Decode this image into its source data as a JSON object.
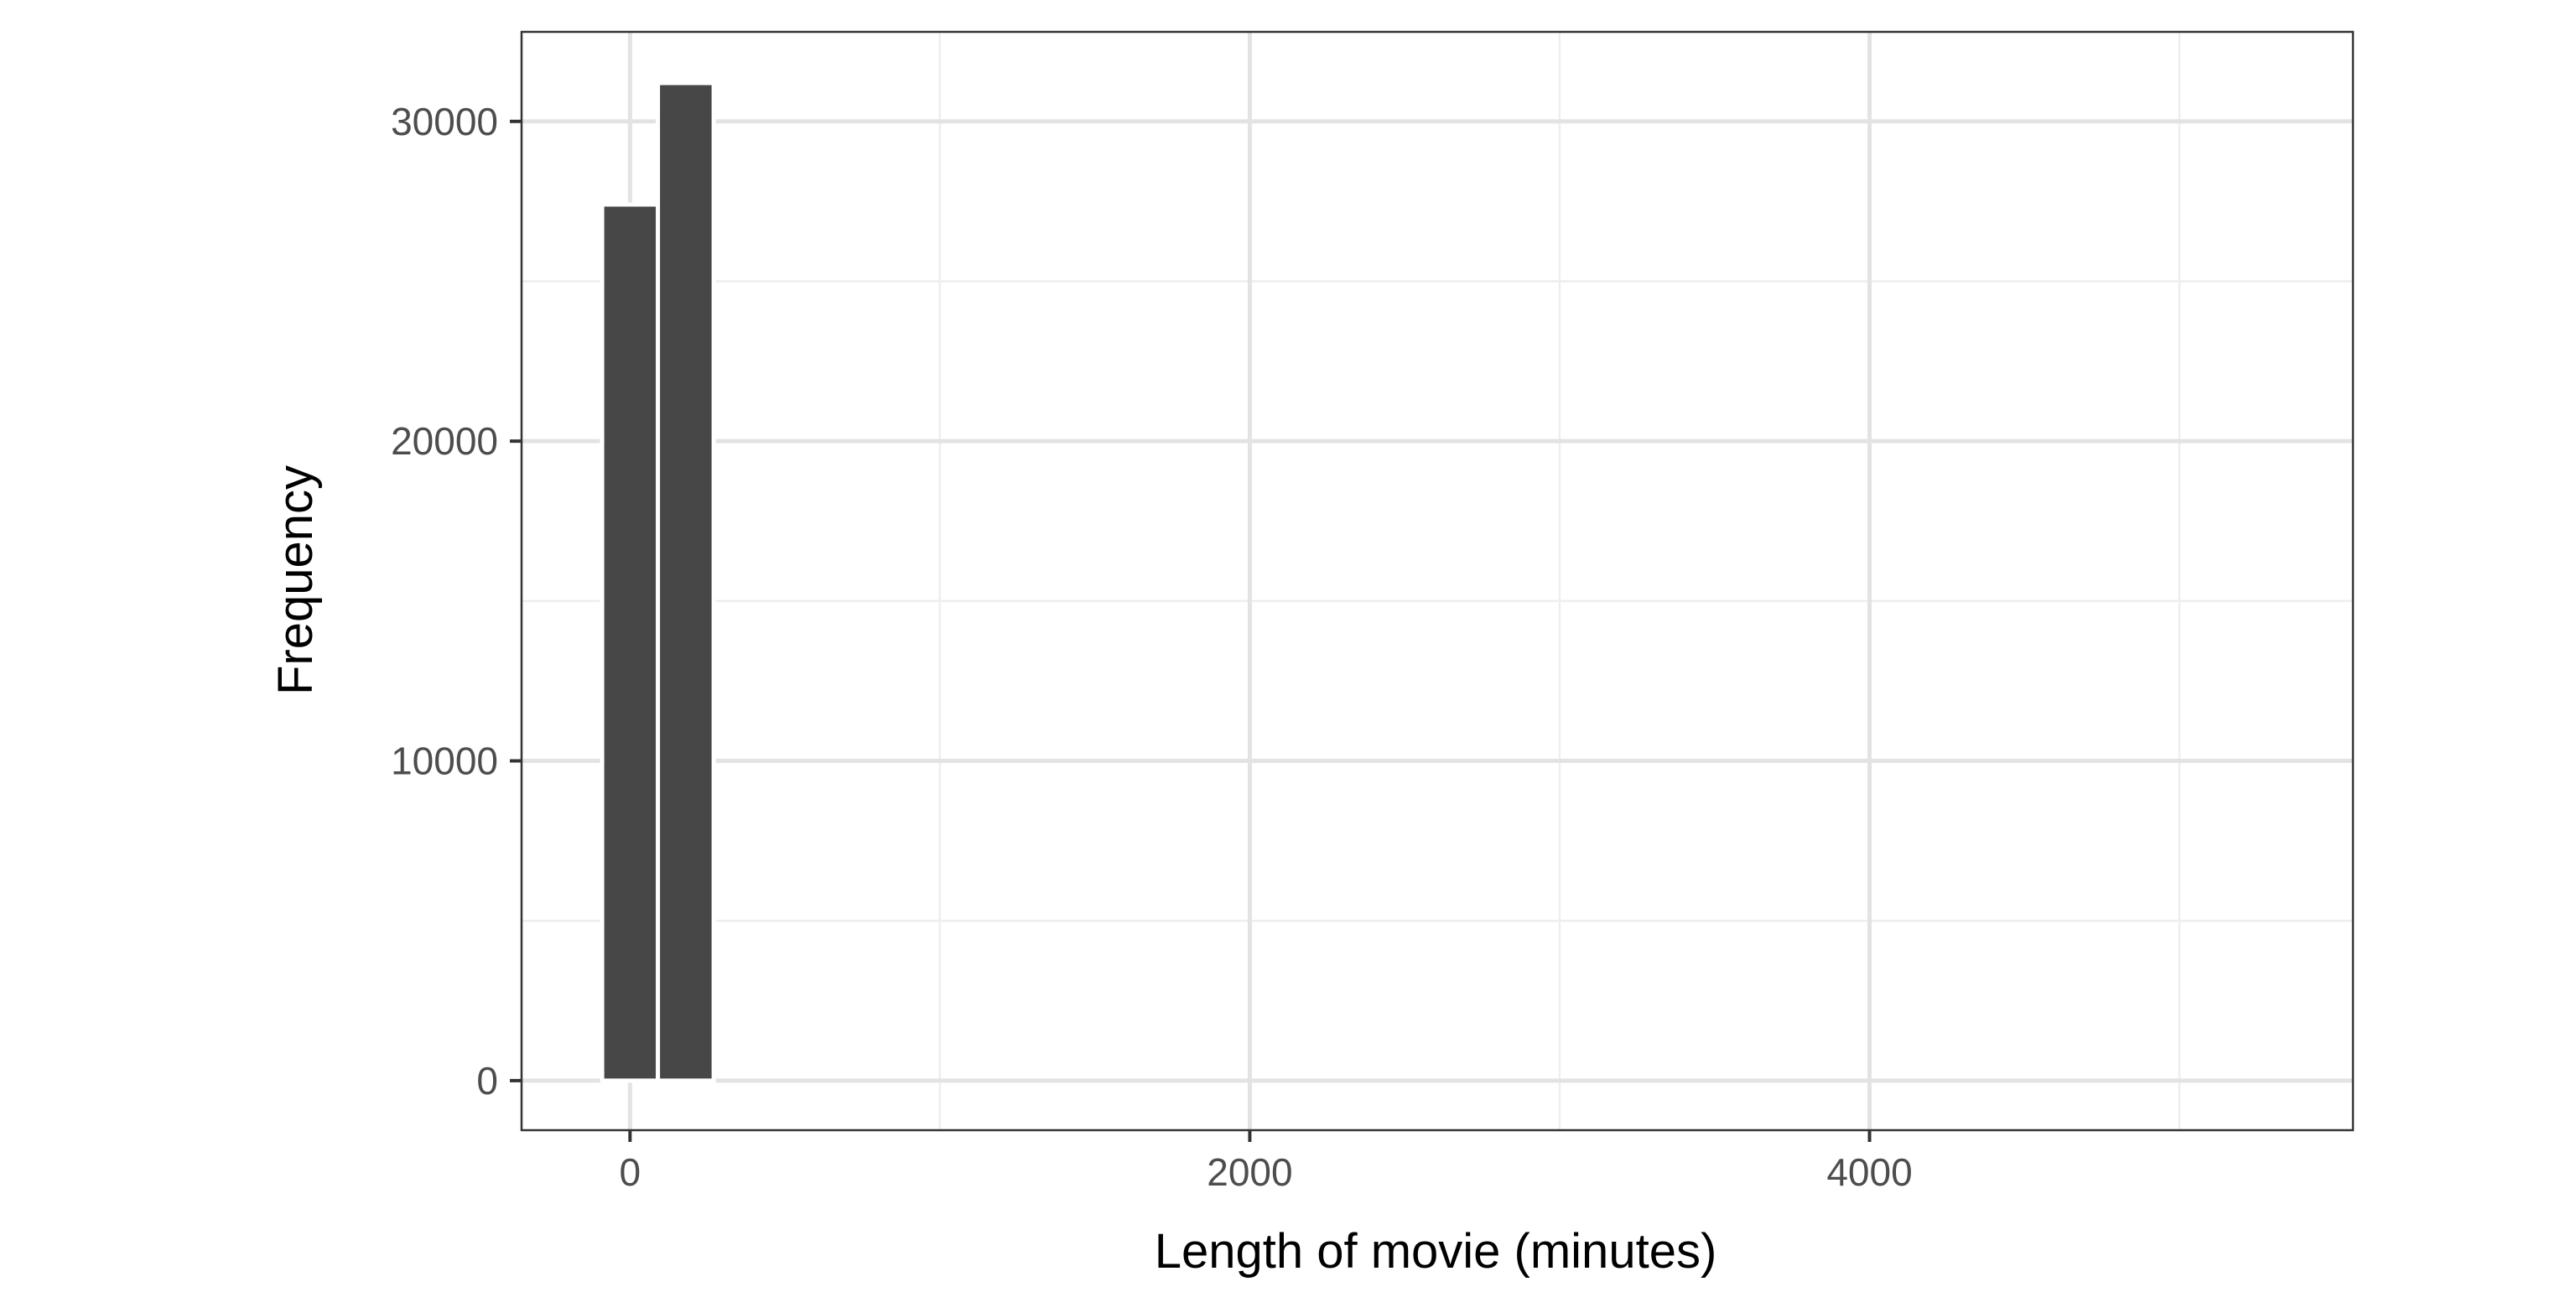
{
  "chart_data": {
    "type": "bar",
    "title": "",
    "xlabel": "Length of movie (minutes)",
    "ylabel": "Frequency",
    "xlim": [
      -350,
      5560
    ],
    "ylim": [
      -1550,
      32800
    ],
    "x_ticks": [
      0,
      2000,
      4000
    ],
    "x_tick_labels": [
      "0",
      "2000",
      "4000"
    ],
    "x_minor_gridlines": [
      1000,
      3000,
      5000
    ],
    "y_ticks": [
      0,
      10000,
      20000,
      30000
    ],
    "y_tick_labels": [
      "0",
      "10000",
      "20000",
      "30000"
    ],
    "y_minor_gridlines": [
      5000,
      15000,
      25000
    ],
    "grid": true,
    "bin_width": 180,
    "bins": [
      {
        "x0": -90,
        "x1": 90,
        "value": 27400
      },
      {
        "x0": 90,
        "x1": 270,
        "value": 31200
      },
      {
        "x0": 270,
        "x1": 5310,
        "value": 0
      }
    ],
    "colors": {
      "bar_fill": "#474747",
      "bar_outline": "#ffffff",
      "grid_major": "#e3e3e3",
      "grid_minor": "#eeeeee",
      "panel_border": "#333333",
      "tick_label": "#4d4d4d",
      "axis_title": "#000000"
    }
  }
}
